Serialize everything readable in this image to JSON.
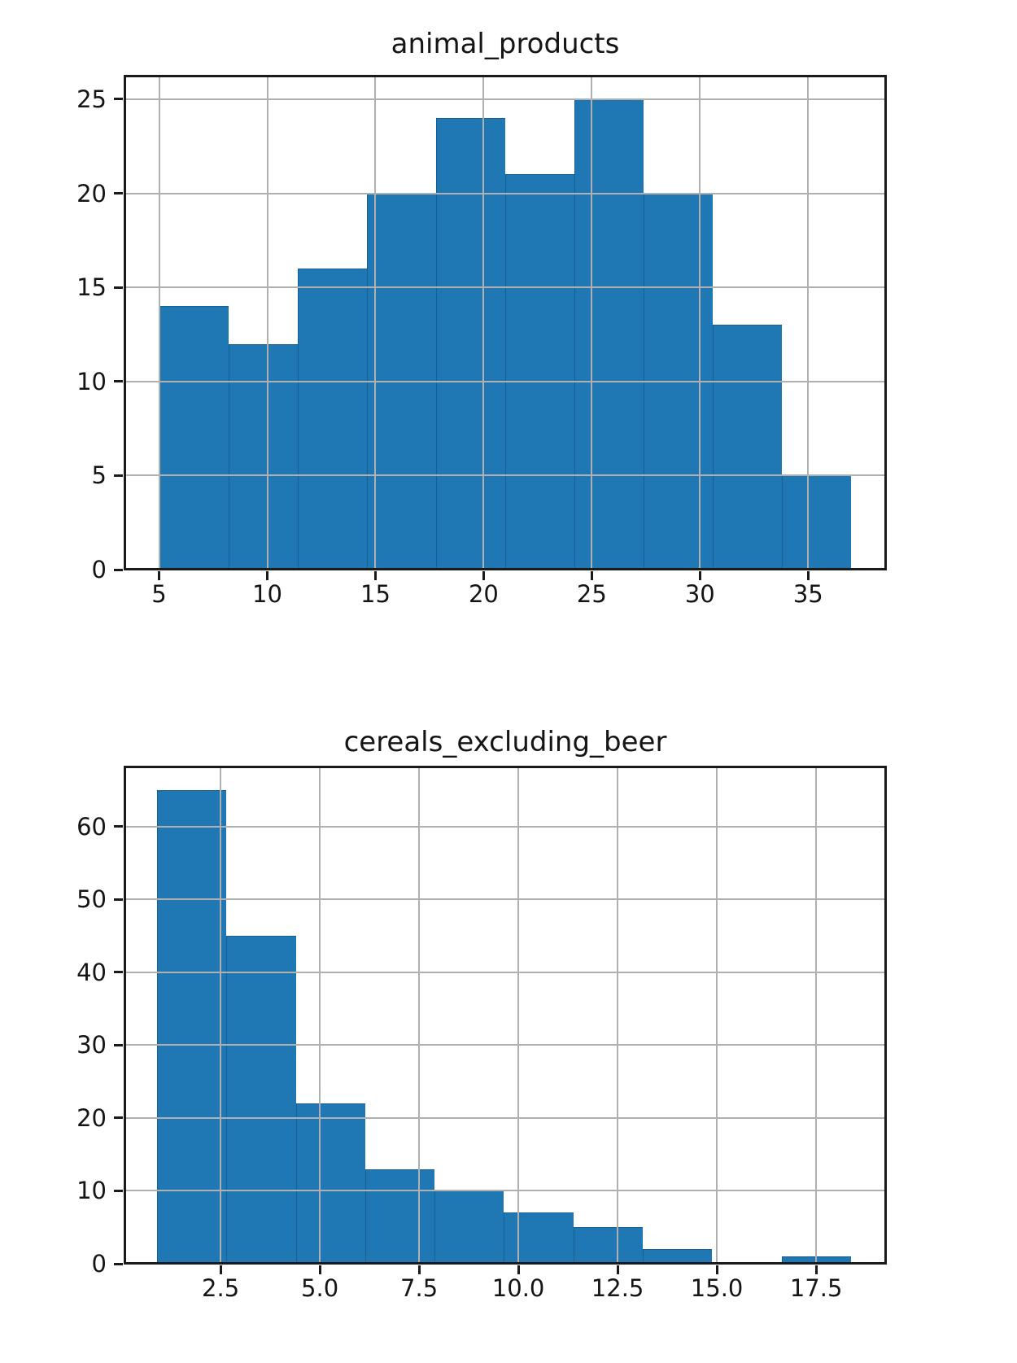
{
  "figure": {
    "background": "#ffffff",
    "bar_color": "#1f77b4",
    "grid_color": "#b0b0b0",
    "spine_color": "#1a1a1a",
    "text_color": "#151515"
  },
  "chart_data": [
    {
      "type": "bar",
      "subtype": "histogram",
      "title": "animal_products",
      "bin_edges": [
        5.0,
        8.2,
        11.4,
        14.6,
        17.8,
        21.0,
        24.2,
        27.4,
        30.6,
        33.8,
        37.0
      ],
      "counts": [
        14,
        12,
        16,
        20,
        24,
        21,
        25,
        20,
        13,
        5
      ],
      "xlabel": "",
      "ylabel": "",
      "xlim": [
        3.4,
        38.6
      ],
      "ylim": [
        0,
        26.25
      ],
      "grid": true,
      "legend": null,
      "xticks": {
        "values": [
          5,
          10,
          15,
          20,
          25,
          30,
          35
        ],
        "labels": [
          "5",
          "10",
          "15",
          "20",
          "25",
          "30",
          "35"
        ]
      },
      "yticks": {
        "values": [
          0,
          5,
          10,
          15,
          20,
          25
        ],
        "labels": [
          "0",
          "5",
          "10",
          "15",
          "20",
          "25"
        ]
      }
    },
    {
      "type": "bar",
      "subtype": "histogram",
      "title": "cereals_excluding_beer",
      "bin_edges": [
        0.9,
        2.6475,
        4.395,
        6.1425,
        7.89,
        9.6375,
        11.385,
        13.1325,
        14.88,
        16.6275,
        18.375
      ],
      "counts": [
        65,
        45,
        22,
        13,
        10,
        7,
        5,
        2,
        0,
        1
      ],
      "xlabel": "",
      "ylabel": "",
      "xlim": [
        0.08,
        19.26
      ],
      "ylim": [
        0,
        68.25
      ],
      "grid": true,
      "legend": null,
      "xticks": {
        "values": [
          2.5,
          5.0,
          7.5,
          10.0,
          12.5,
          15.0,
          17.5
        ],
        "labels": [
          "2.5",
          "5.0",
          "7.5",
          "10.0",
          "12.5",
          "15.0",
          "17.5"
        ]
      },
      "yticks": {
        "values": [
          0,
          10,
          20,
          30,
          40,
          50,
          60
        ],
        "labels": [
          "0",
          "10",
          "20",
          "30",
          "40",
          "50",
          "60"
        ]
      }
    }
  ]
}
